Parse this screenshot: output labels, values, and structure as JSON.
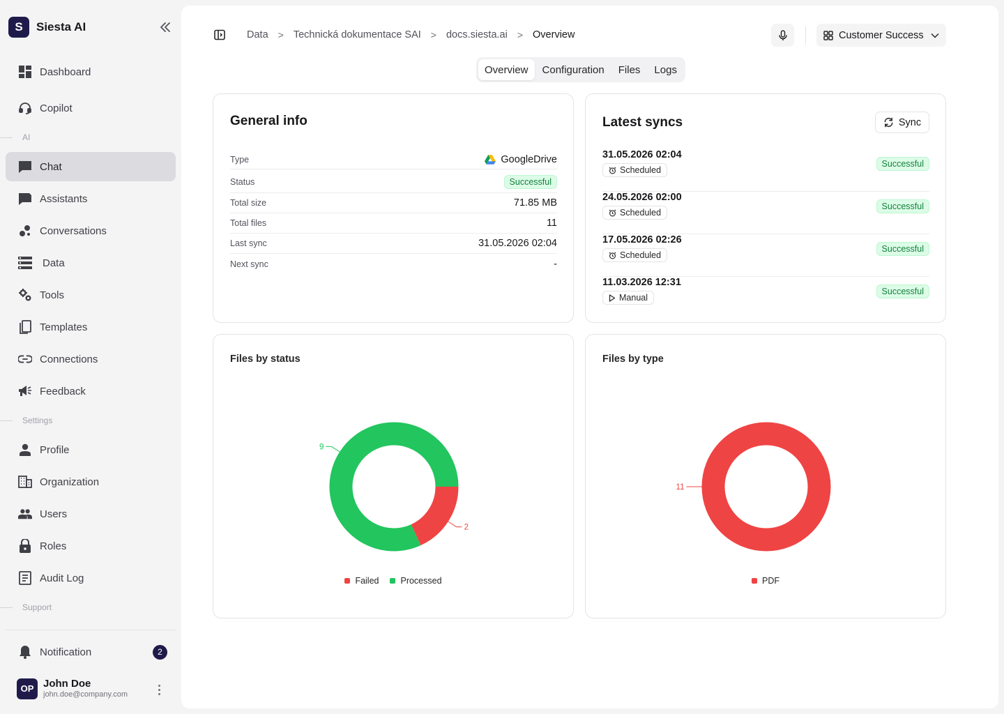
{
  "sidebar": {
    "brand": {
      "logo_letter": "S",
      "name": "Siesta AI"
    },
    "top_items": [
      {
        "label": "Dashboard",
        "icon": "dashboard-icon"
      },
      {
        "label": "Copilot",
        "icon": "headset-icon"
      }
    ],
    "section_ai": "AI",
    "ai_items": [
      {
        "label": "Chat",
        "icon": "chat-icon",
        "active": true
      },
      {
        "label": "Assistants",
        "icon": "flag-chat-icon"
      },
      {
        "label": "Conversations",
        "icon": "bubbles-icon"
      },
      {
        "label": "Data",
        "icon": "database-icon"
      },
      {
        "label": "Tools",
        "icon": "gears-icon"
      },
      {
        "label": "Templates",
        "icon": "templates-icon"
      },
      {
        "label": "Connections",
        "icon": "link-icon"
      },
      {
        "label": "Feedback",
        "icon": "megaphone-icon"
      }
    ],
    "section_settings": "Settings",
    "settings_items": [
      {
        "label": "Profile",
        "icon": "person-icon"
      },
      {
        "label": "Organization",
        "icon": "building-icon"
      },
      {
        "label": "Users",
        "icon": "people-icon"
      },
      {
        "label": "Roles",
        "icon": "lock-icon"
      },
      {
        "label": "Audit Log",
        "icon": "log-icon"
      }
    ],
    "section_support": "Support",
    "notification": {
      "label": "Notification",
      "count": "2"
    },
    "user": {
      "initials": "OP",
      "name": "John Doe",
      "email": "john.doe@company.com"
    }
  },
  "header": {
    "breadcrumb": [
      "Data",
      "Technická dokumentace SAI",
      "docs.siesta.ai",
      "Overview"
    ],
    "breadcrumb_separator": ">",
    "workspace": "Customer Success"
  },
  "tabs": [
    {
      "label": "Overview",
      "active": true
    },
    {
      "label": "Configuration"
    },
    {
      "label": "Files"
    },
    {
      "label": "Logs"
    }
  ],
  "general_info": {
    "title": "General info",
    "rows": {
      "type": {
        "label": "Type",
        "value": "GoogleDrive"
      },
      "status": {
        "label": "Status",
        "value": "Successful"
      },
      "total_size": {
        "label": "Total size",
        "value": "71.85 MB"
      },
      "total_files": {
        "label": "Total files",
        "value": "11"
      },
      "last_sync": {
        "label": "Last sync",
        "value": "31.05.2026 02:04"
      },
      "next_sync": {
        "label": "Next sync",
        "value": "-"
      }
    }
  },
  "latest_syncs": {
    "title": "Latest syncs",
    "button": "Sync",
    "items": [
      {
        "date": "31.05.2026 02:04",
        "kind": "Scheduled",
        "kind_icon": "alarm-icon",
        "status": "Successful"
      },
      {
        "date": "24.05.2026 02:00",
        "kind": "Scheduled",
        "kind_icon": "alarm-icon",
        "status": "Successful"
      },
      {
        "date": "17.05.2026 02:26",
        "kind": "Scheduled",
        "kind_icon": "alarm-icon",
        "status": "Successful"
      },
      {
        "date": "11.03.2026 12:31",
        "kind": "Manual",
        "kind_icon": "play-icon",
        "status": "Successful"
      }
    ]
  },
  "colors": {
    "processed": "#22c55e",
    "failed": "#ef4444",
    "pdf": "#ef4444",
    "brand": "#1e1b4b",
    "success_bg": "#dcfce7",
    "success_text": "#15803d"
  },
  "chart_data": [
    {
      "type": "pie",
      "title": "Files by status",
      "categories": [
        "Failed",
        "Processed"
      ],
      "values": [
        2,
        9
      ],
      "colors": [
        "#ef4444",
        "#22c55e"
      ],
      "legend": "bottom"
    },
    {
      "type": "pie",
      "title": "Files by type",
      "categories": [
        "PDF"
      ],
      "values": [
        11
      ],
      "colors": [
        "#ef4444"
      ],
      "legend": "bottom"
    }
  ]
}
